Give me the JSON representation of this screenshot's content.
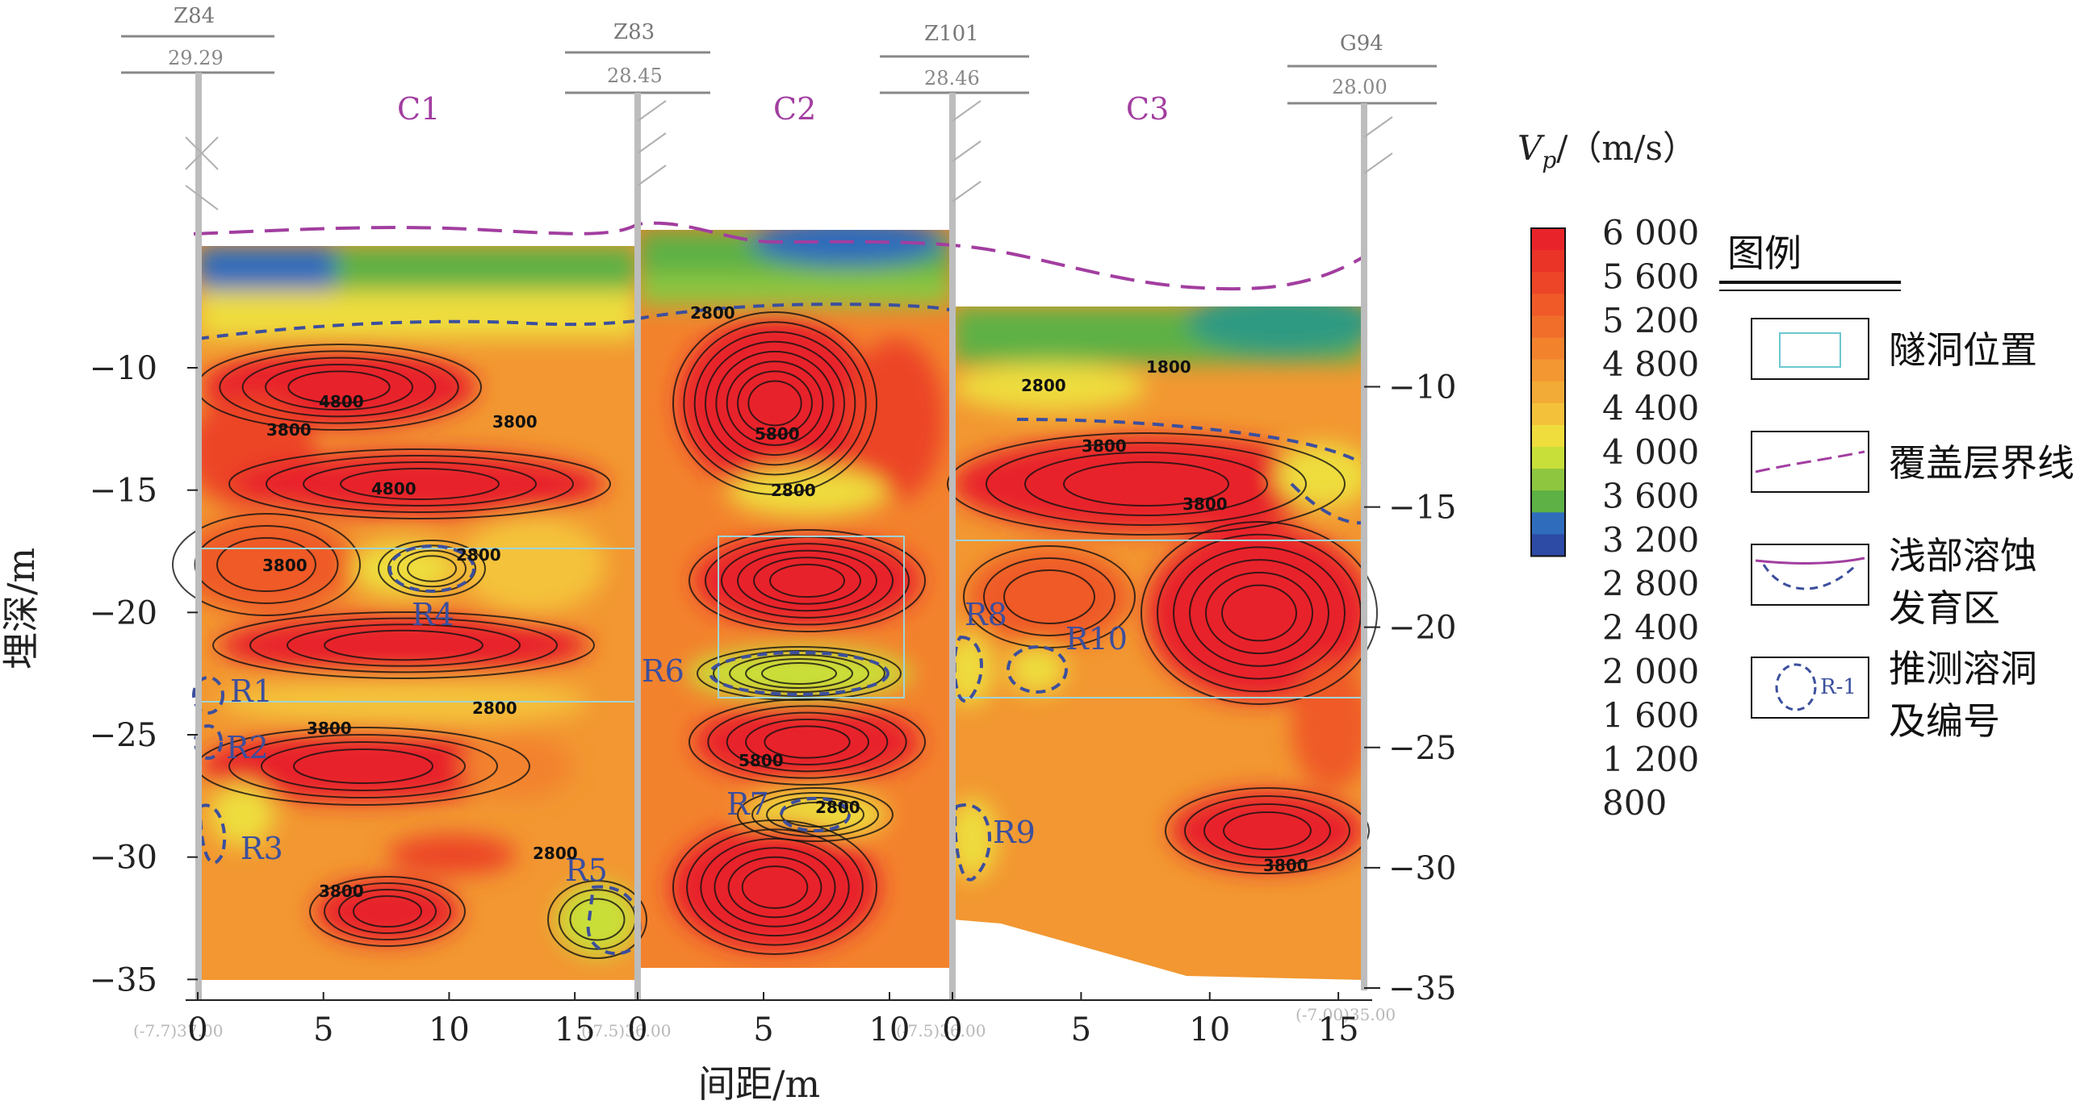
{
  "chart_data": {
    "type": "heatmap",
    "title": "",
    "xlabel": "间距/m",
    "ylabel": "埋深/m",
    "colorbar_label": "V_p/(m/s)",
    "colorbar_ticks": [
      "6 000",
      "5 600",
      "5 200",
      "4 800",
      "4 400",
      "4 000",
      "3 600",
      "3 200",
      "2 800",
      "2 400",
      "2 000",
      "1 600",
      "1 200",
      "800"
    ],
    "colorbar_colors": [
      "#e8242a",
      "#ea3428",
      "#ec4527",
      "#ef5a28",
      "#f16d2a",
      "#f3822d",
      "#f29731",
      "#f2ab36",
      "#f4c23a",
      "#eedd3c",
      "#c9df39",
      "#8ec63f",
      "#5db145",
      "#2f6cbc",
      "#2d4aa5"
    ],
    "panels": [
      {
        "name": "C1",
        "x_ticks": [
          "0",
          "5",
          "10",
          "15"
        ],
        "y_ticks": [
          "-10",
          "-15",
          "-20",
          "-25",
          "-30",
          "-35"
        ],
        "x_range": [
          0,
          17.5
        ],
        "y_range": [
          -7,
          -37
        ]
      },
      {
        "name": "C2",
        "x_ticks": [
          "0",
          "5",
          "10"
        ],
        "x_range": [
          0,
          12.5
        ],
        "y_range": [
          -7,
          -37
        ]
      },
      {
        "name": "C3",
        "x_ticks": [
          "0",
          "5",
          "10",
          "15"
        ],
        "y_ticks": [
          "-10",
          "-15",
          "-20",
          "-25",
          "-30",
          "-35"
        ],
        "x_range": [
          0,
          16
        ],
        "y_range": [
          -7,
          -35
        ]
      }
    ],
    "boreholes": [
      {
        "name": "Z84",
        "elev": "29.29"
      },
      {
        "name": "Z83",
        "elev": "28.45"
      },
      {
        "name": "Z101",
        "elev": "28.46"
      },
      {
        "name": "G94",
        "elev": "28.00"
      }
    ],
    "bottom_notes": [
      "(-7.7)37.00",
      "(-7.5)36.00",
      "(-7.5)36.00",
      "(-7.00)35.00"
    ],
    "cavities": [
      "R1",
      "R2",
      "R3",
      "R4",
      "R5",
      "R6",
      "R7",
      "R8",
      "R9",
      "R10"
    ],
    "contour_labels": [
      "4800",
      "3800",
      "3800",
      "4800",
      "2800",
      "3800",
      "2800",
      "3800",
      "2800",
      "3800",
      "2800",
      "5800",
      "2800",
      "5800",
      "2800",
      "1800",
      "2800",
      "3800",
      "3800",
      "3800"
    ]
  },
  "legend": {
    "title": "图例",
    "items": [
      {
        "label": "隧洞位置",
        "symbol": "tunnel"
      },
      {
        "label": "覆盖层界线",
        "symbol": "overburden-line"
      },
      {
        "label": "浅部溶蚀",
        "label2": "发育区",
        "symbol": "shallow-karst"
      },
      {
        "label": "推测溶洞",
        "label2": "及编号",
        "symbol": "cavity",
        "sample": "R-1"
      }
    ]
  }
}
